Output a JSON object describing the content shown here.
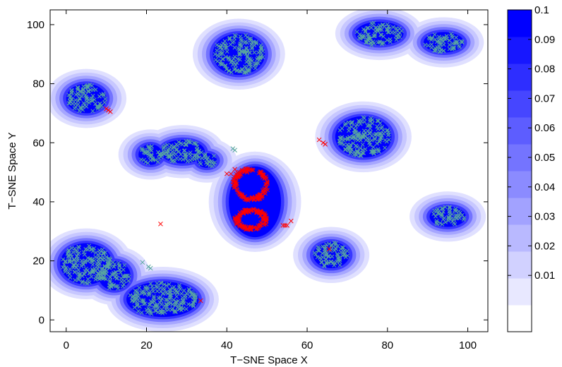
{
  "chart_data": {
    "type": "heatmap",
    "title": "",
    "xlabel": "T−SNE Space X",
    "ylabel": "T−SNE Space Y",
    "xlim": [
      -4,
      105
    ],
    "ylim": [
      -4,
      105
    ],
    "xticks": [
      0,
      20,
      40,
      60,
      80,
      100
    ],
    "yticks": [
      0,
      20,
      40,
      60,
      80,
      100
    ],
    "grid": false,
    "colorbar": {
      "range": [
        0,
        0.1
      ],
      "levels": 12,
      "ticks": [
        0.01,
        0.02,
        0.03,
        0.04,
        0.05,
        0.06,
        0.07,
        0.08,
        0.09,
        0.1
      ],
      "low_color": "#ffffff",
      "high_color": "#0000ff"
    },
    "marker_colors": {
      "cluster_points": "#5aa6a0",
      "outliers": "#ff0000"
    },
    "clusters": [
      {
        "cx": 5,
        "cy": 75,
        "rx": 5,
        "ry": 5
      },
      {
        "cx": 43,
        "cy": 90,
        "rx": 6.5,
        "ry": 7
      },
      {
        "cx": 78,
        "cy": 97,
        "rx": 6,
        "ry": 4
      },
      {
        "cx": 94,
        "cy": 94,
        "rx": 5,
        "ry": 3.5
      },
      {
        "cx": 74,
        "cy": 62,
        "rx": 7,
        "ry": 7
      },
      {
        "cx": 29,
        "cy": 57,
        "rx": 5.5,
        "ry": 4
      },
      {
        "cx": 21,
        "cy": 56,
        "rx": 3,
        "ry": 3.5
      },
      {
        "cx": 35,
        "cy": 54,
        "rx": 2.5,
        "ry": 2.5
      },
      {
        "cx": 47,
        "cy": 40,
        "rx": 6.5,
        "ry": 12
      },
      {
        "cx": 66,
        "cy": 22,
        "rx": 4.5,
        "ry": 4.5
      },
      {
        "cx": 95,
        "cy": 35,
        "rx": 4.5,
        "ry": 3.5
      },
      {
        "cx": 5,
        "cy": 19,
        "rx": 6.5,
        "ry": 7
      },
      {
        "cx": 12,
        "cy": 15,
        "rx": 4,
        "ry": 5
      },
      {
        "cx": 24,
        "cy": 7,
        "rx": 9,
        "ry": 6
      }
    ],
    "outliers": [
      [
        10,
        71.5
      ],
      [
        11,
        70.5
      ],
      [
        10.5,
        71
      ],
      [
        23.5,
        32.5
      ],
      [
        33.5,
        6.5
      ],
      [
        40,
        49.5
      ],
      [
        41,
        49.5
      ],
      [
        42,
        51
      ],
      [
        45,
        50
      ],
      [
        45.5,
        50.5
      ],
      [
        63,
        61
      ],
      [
        64,
        60
      ],
      [
        64.5,
        59.5
      ],
      [
        54,
        32
      ],
      [
        55,
        32
      ],
      [
        56,
        33.5
      ],
      [
        54.5,
        32
      ],
      [
        65.5,
        24
      ]
    ],
    "stray_points": [
      [
        41.5,
        58
      ],
      [
        42,
        57.5
      ],
      [
        76,
        93
      ],
      [
        19,
        19.5
      ],
      [
        20.5,
        18
      ],
      [
        21,
        17.5
      ]
    ]
  }
}
